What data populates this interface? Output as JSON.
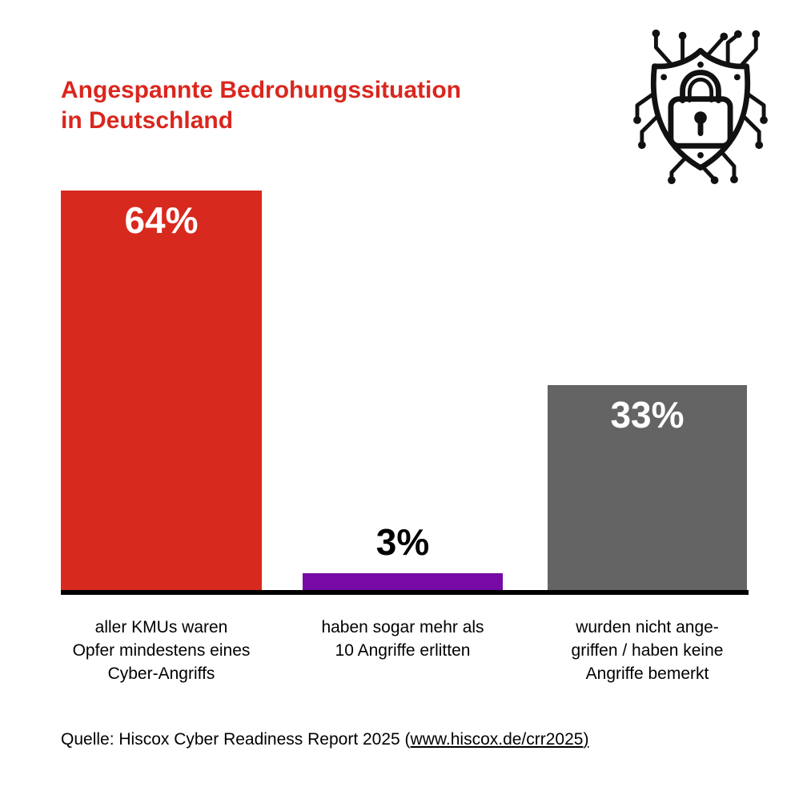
{
  "page": {
    "title": "Angespannte Bedrohungssituation\nin Deutschland"
  },
  "colors": {
    "title_red": "#d9271e",
    "bar_red": "#d8291e",
    "bar_purple": "#7709a6",
    "bar_gray": "#646464",
    "baseline_black": "#000000",
    "icon_black": "#111111"
  },
  "icons": {
    "shield_lock": "cyber-security-shield-lock-icon"
  },
  "chart_data": {
    "type": "bar",
    "title": "Angespannte Bedrohungssituation in Deutschland",
    "unit": "%",
    "ylim": [
      0,
      64
    ],
    "grid": false,
    "legend": false,
    "bars": [
      {
        "value": 64,
        "value_label": "64%",
        "color": "#d8291e",
        "label_inside": true,
        "label_color": "#ffffff",
        "caption": "aller KMUs waren\nOpfer mindestens eines\nCyber-Angriffs"
      },
      {
        "value": 3,
        "value_label": "3%",
        "color": "#7709a6",
        "label_inside": false,
        "label_color": "#000000",
        "caption": "haben sogar mehr als\n10 Angriffe erlitten"
      },
      {
        "value": 33,
        "value_label": "33%",
        "color": "#646464",
        "label_inside": true,
        "label_color": "#ffffff",
        "caption": "wurden nicht ange-\ngriffen / haben keine\nAngriffe bemerkt"
      }
    ]
  },
  "source": {
    "prefix": "Quelle: Hiscox Cyber Readiness Report 2025 (",
    "link": "www.hiscox.de/crr2025",
    "suffix": ")"
  }
}
